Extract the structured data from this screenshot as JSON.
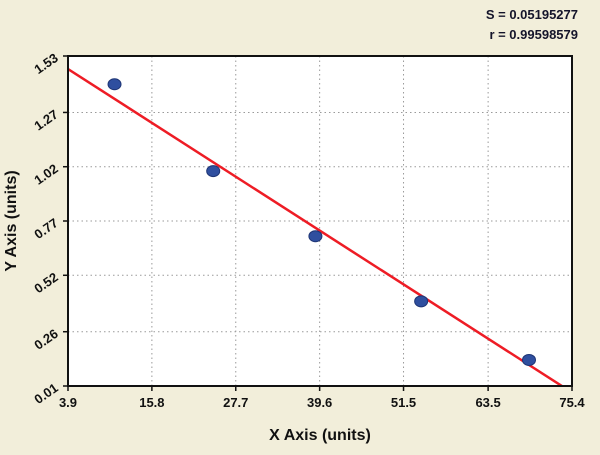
{
  "chart_data": {
    "type": "scatter",
    "title": "",
    "xlabel": "X Axis (units)",
    "ylabel": "Y Axis (units)",
    "xlim": [
      3.9,
      75.4
    ],
    "ylim": [
      0.01,
      1.53
    ],
    "x_ticks": [
      3.9,
      15.8,
      27.7,
      39.6,
      51.5,
      63.5,
      75.4
    ],
    "y_ticks": [
      0.01,
      0.26,
      0.52,
      0.77,
      1.02,
      1.27,
      1.53
    ],
    "points": [
      {
        "x": 10.5,
        "y": 1.4
      },
      {
        "x": 24.5,
        "y": 1.0
      },
      {
        "x": 39.0,
        "y": 0.7
      },
      {
        "x": 54.0,
        "y": 0.4
      },
      {
        "x": 69.3,
        "y": 0.13
      }
    ],
    "regression_line": {
      "x1": 3.9,
      "y1": 1.47,
      "x2": 75.4,
      "y2": -0.02
    },
    "annotations": [
      "S = 0.05195277",
      "r = 0.99598579"
    ],
    "grid": "dotted",
    "legend": "none",
    "colors": {
      "background": "#f2eeda",
      "plot_background": "#ffffff",
      "line": "#ee1c25",
      "point_fill": "#2f4f9f",
      "point_stroke": "#1e3575",
      "grid": "#9a9a9a",
      "text": "#111111"
    }
  }
}
